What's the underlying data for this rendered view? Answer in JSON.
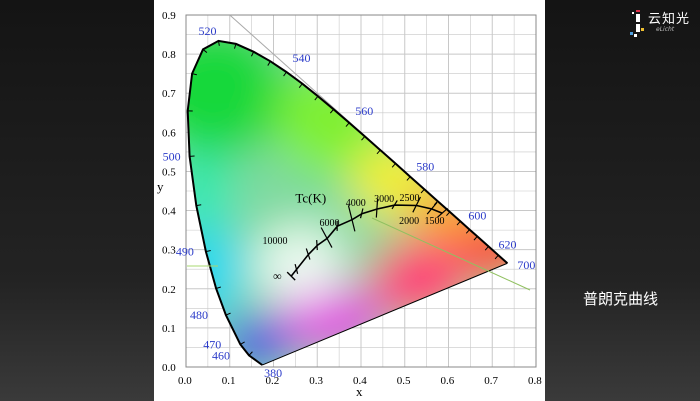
{
  "logo": {
    "brand": "云知光",
    "tagline": "eLicht"
  },
  "annotation": {
    "planck_label": "普朗克曲线"
  },
  "chart_data": {
    "type": "chromaticity-diagram",
    "xlabel": "x",
    "ylabel": "y",
    "xlim": [
      0.0,
      0.8
    ],
    "ylim": [
      0.0,
      0.9
    ],
    "grid": true,
    "x_ticks": [
      "0.0",
      "0.1",
      "0.2",
      "0.3",
      "0.4",
      "0.5",
      "0.6",
      "0.7",
      "0.8"
    ],
    "y_ticks": [
      "0.0",
      "0.1",
      "0.2",
      "0.3",
      "0.4",
      "0.5",
      "0.6",
      "0.7",
      "0.8",
      "0.9"
    ],
    "spectral_locus": [
      {
        "x": 0.1741,
        "y": 0.005
      },
      {
        "x": 0.144,
        "y": 0.0297
      },
      {
        "x": 0.1241,
        "y": 0.0578
      },
      {
        "x": 0.0913,
        "y": 0.1327
      },
      {
        "x": 0.0687,
        "y": 0.2007
      },
      {
        "x": 0.0454,
        "y": 0.295
      },
      {
        "x": 0.0235,
        "y": 0.4127
      },
      {
        "x": 0.0082,
        "y": 0.5384
      },
      {
        "x": 0.0039,
        "y": 0.6548
      },
      {
        "x": 0.0139,
        "y": 0.7502
      },
      {
        "x": 0.0389,
        "y": 0.812
      },
      {
        "x": 0.0743,
        "y": 0.8338
      },
      {
        "x": 0.1142,
        "y": 0.8262
      },
      {
        "x": 0.1547,
        "y": 0.8059
      },
      {
        "x": 0.1929,
        "y": 0.7816
      },
      {
        "x": 0.2296,
        "y": 0.7543
      },
      {
        "x": 0.2658,
        "y": 0.7243
      },
      {
        "x": 0.3016,
        "y": 0.6923
      },
      {
        "x": 0.3373,
        "y": 0.6589
      },
      {
        "x": 0.3731,
        "y": 0.6245
      },
      {
        "x": 0.4087,
        "y": 0.5896
      },
      {
        "x": 0.4441,
        "y": 0.5547
      },
      {
        "x": 0.4788,
        "y": 0.5202
      },
      {
        "x": 0.5125,
        "y": 0.4866
      },
      {
        "x": 0.5448,
        "y": 0.4544
      },
      {
        "x": 0.5752,
        "y": 0.4242
      },
      {
        "x": 0.6029,
        "y": 0.3965
      },
      {
        "x": 0.627,
        "y": 0.3725
      },
      {
        "x": 0.6482,
        "y": 0.3514
      },
      {
        "x": 0.6658,
        "y": 0.334
      },
      {
        "x": 0.6915,
        "y": 0.3083
      },
      {
        "x": 0.714,
        "y": 0.2859
      },
      {
        "x": 0.7347,
        "y": 0.2653
      }
    ],
    "wavelength_labels": [
      {
        "label": "380",
        "x": 0.1741,
        "y": 0.005,
        "dx": 2,
        "dy": 12
      },
      {
        "label": "460",
        "x": 0.144,
        "y": 0.0297,
        "dx": -37,
        "dy": 4
      },
      {
        "label": "470",
        "x": 0.1241,
        "y": 0.0578,
        "dx": -37,
        "dy": 4
      },
      {
        "label": "480",
        "x": 0.0913,
        "y": 0.1327,
        "dx": -36,
        "dy": 4
      },
      {
        "label": "490",
        "x": 0.0454,
        "y": 0.295,
        "dx": -30,
        "dy": 4
      },
      {
        "label": "500",
        "x": 0.0082,
        "y": 0.5384,
        "dx": -27,
        "dy": 4
      },
      {
        "label": "520",
        "x": 0.0743,
        "y": 0.8338,
        "dx": -20,
        "dy": -6
      },
      {
        "label": "540",
        "x": 0.2296,
        "y": 0.7543,
        "dx": 6,
        "dy": -10
      },
      {
        "label": "560",
        "x": 0.3731,
        "y": 0.6245,
        "dx": 6,
        "dy": -8
      },
      {
        "label": "580",
        "x": 0.5125,
        "y": 0.4866,
        "dx": 6,
        "dy": -6
      },
      {
        "label": "600",
        "x": 0.627,
        "y": 0.3725,
        "dx": 8,
        "dy": -2
      },
      {
        "label": "620",
        "x": 0.6915,
        "y": 0.3083,
        "dx": 10,
        "dy": 2
      },
      {
        "label": "700",
        "x": 0.7347,
        "y": 0.2653,
        "dx": 10,
        "dy": 6
      }
    ],
    "planckian_locus": [
      {
        "x": 0.2404,
        "y": 0.2325
      },
      {
        "x": 0.253,
        "y": 0.25
      },
      {
        "x": 0.28,
        "y": 0.288
      },
      {
        "x": 0.3,
        "y": 0.311
      },
      {
        "x": 0.323,
        "y": 0.329
      },
      {
        "x": 0.346,
        "y": 0.36
      },
      {
        "x": 0.38,
        "y": 0.377
      },
      {
        "x": 0.402,
        "y": 0.392
      },
      {
        "x": 0.437,
        "y": 0.404
      },
      {
        "x": 0.477,
        "y": 0.414
      },
      {
        "x": 0.527,
        "y": 0.413
      },
      {
        "x": 0.562,
        "y": 0.404
      },
      {
        "x": 0.586,
        "y": 0.393
      }
    ],
    "isotherm_labels": [
      {
        "label": "∞",
        "x": 0.2404,
        "y": 0.2325,
        "dx": -18,
        "dy": 4
      },
      {
        "label": "10000",
        "x": 0.225,
        "y": 0.315,
        "dx": -22,
        "dy": 0
      },
      {
        "label": "6000",
        "x": 0.305,
        "y": 0.36,
        "dx": 0,
        "dy": 0
      },
      {
        "label": "4000",
        "x": 0.365,
        "y": 0.412,
        "dx": 0,
        "dy": 0
      },
      {
        "label": "3000",
        "x": 0.43,
        "y": 0.422,
        "dx": 0,
        "dy": 0
      },
      {
        "label": "2500",
        "x": 0.488,
        "y": 0.425,
        "dx": 0,
        "dy": 0
      },
      {
        "label": "2000",
        "x": 0.487,
        "y": 0.366,
        "dx": 0,
        "dy": 0
      },
      {
        "label": "1500",
        "x": 0.545,
        "y": 0.366,
        "dx": 0,
        "dy": 0
      }
    ],
    "tc_label": "Tc(K)"
  }
}
